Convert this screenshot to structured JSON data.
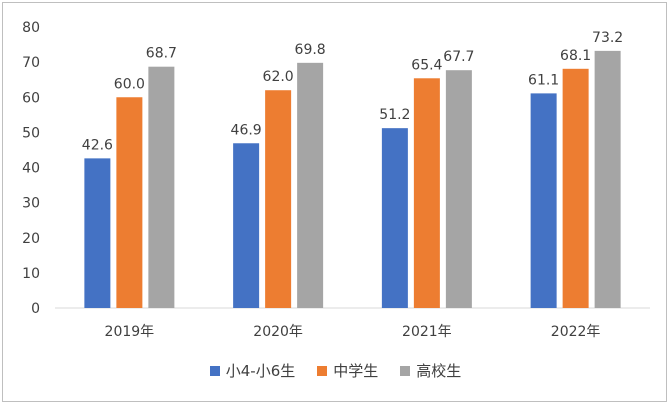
{
  "chart_data": {
    "type": "bar",
    "categories": [
      "2019年",
      "2020年",
      "2021年",
      "2022年"
    ],
    "series": [
      {
        "name": "小4-小6生",
        "color": "#4472c4",
        "values": [
          42.6,
          46.9,
          51.2,
          61.1
        ]
      },
      {
        "name": "中学生",
        "color": "#ed7d31",
        "values": [
          60.0,
          62.0,
          65.4,
          68.1
        ]
      },
      {
        "name": "高校生",
        "color": "#a5a5a5",
        "values": [
          68.7,
          69.8,
          67.7,
          73.2
        ]
      }
    ],
    "yticks": [
      "0",
      "10",
      "20",
      "30",
      "40",
      "50",
      "60",
      "70",
      "80"
    ],
    "ylim": [
      0,
      80
    ],
    "grid": false,
    "legend": "bottom",
    "title": "",
    "xlabel": "",
    "ylabel": ""
  }
}
